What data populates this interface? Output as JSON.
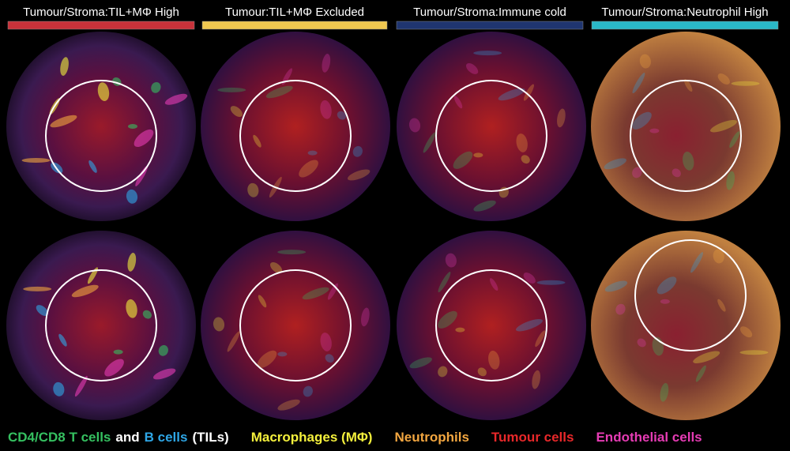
{
  "columns": [
    {
      "title": "Tumour/Stroma:TIL+MΦ High",
      "color": "#c8323a"
    },
    {
      "title": "Tumour:TIL+MΦ Excluded",
      "color": "#f0c850"
    },
    {
      "title": "Tumour/Stroma:Immune cold",
      "color": "#1f3570"
    },
    {
      "title": "Tumour/Stroma:Neutrophil High",
      "color": "#2ab8c8"
    }
  ],
  "legend": [
    {
      "label": "CD4/CD8 T cells",
      "color": "#35c060"
    },
    {
      "label": "and",
      "color": "#ffffff"
    },
    {
      "label": "B cells",
      "color": "#2ea6e6"
    },
    {
      "label": "(TILs)",
      "color": "#ffffff"
    },
    {
      "label": "Macrophages (MΦ)",
      "color": "#f4f03c"
    },
    {
      "label": "Neutrophils",
      "color": "#f2a640"
    },
    {
      "label": "Tumour cells",
      "color": "#e8282a"
    },
    {
      "label": "Endothelial cells",
      "color": "#e63cb4"
    }
  ]
}
